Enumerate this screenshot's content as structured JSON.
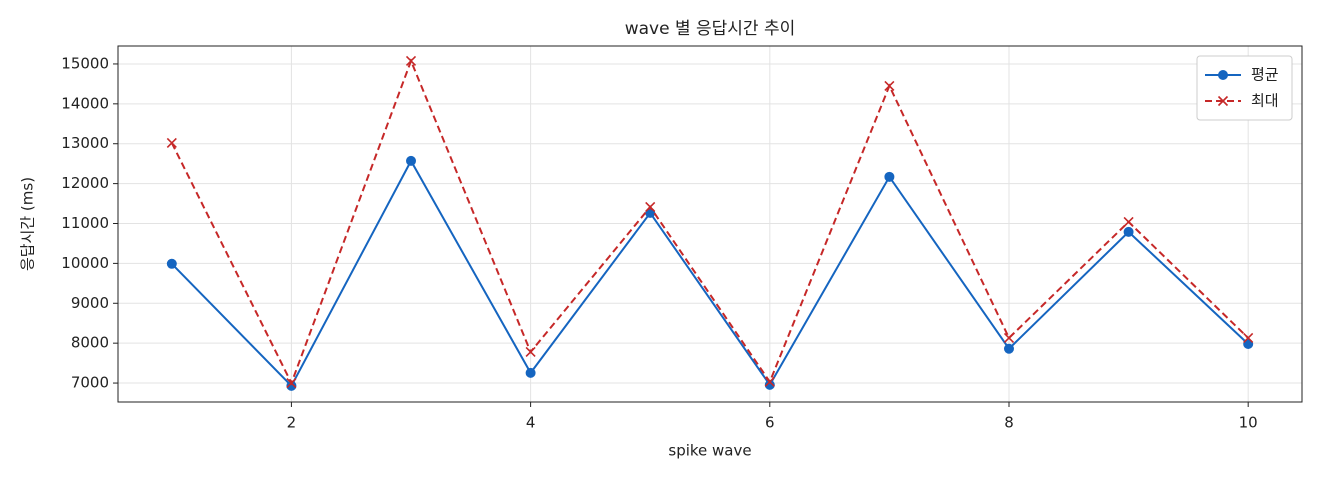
{
  "chart_data": {
    "type": "line",
    "title": "wave 별 응답시간 추이",
    "x_label": "spike wave",
    "y_label": "응답시간 (ms)",
    "x": [
      1,
      2,
      3,
      4,
      5,
      6,
      7,
      8,
      9,
      10
    ],
    "series": [
      {
        "name": "평균",
        "color": "#1565c0",
        "linestyle": "solid",
        "marker": "circle",
        "values": [
          9990,
          6930,
          12570,
          7255,
          11265,
          6955,
          12170,
          7860,
          10790,
          7980
        ]
      },
      {
        "name": "최대",
        "color": "#c62828",
        "linestyle": "dashed",
        "marker": "x",
        "values": [
          13020,
          7000,
          15075,
          7780,
          11415,
          7030,
          14450,
          8130,
          11040,
          8130
        ]
      }
    ],
    "xlim": [
      0.55,
      10.45
    ],
    "xticks": [
      2,
      4,
      6,
      8,
      10
    ],
    "ylim": [
      6525,
      15450
    ],
    "yticks": [
      7000,
      8000,
      9000,
      10000,
      11000,
      12000,
      13000,
      14000,
      15000
    ],
    "grid": true,
    "legend": "upper right"
  }
}
